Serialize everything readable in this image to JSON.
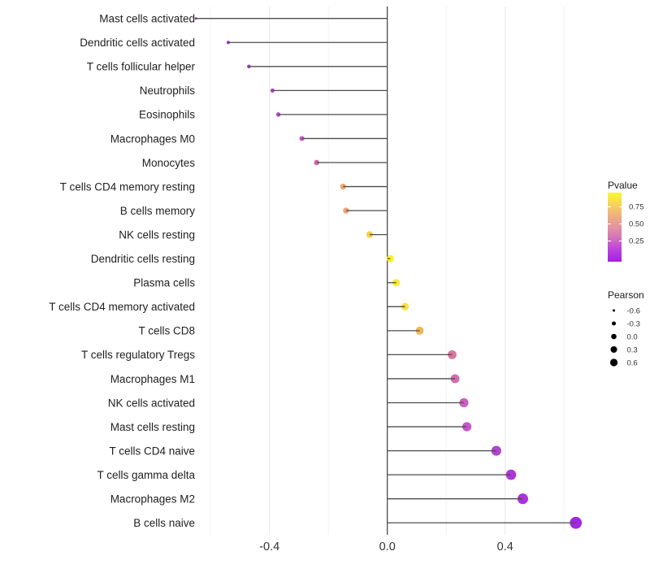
{
  "figure": {
    "background": "#ffffff",
    "title": ""
  },
  "chart_data": {
    "type": "lollipop",
    "orientation": "horizontal",
    "title": "",
    "xlabel": "",
    "ylabel": "",
    "x_axis": {
      "range": [
        -0.72,
        0.72
      ],
      "ticks": [
        -0.4,
        0.0,
        0.4
      ],
      "tick_labels": [
        "-0.4",
        "0.0",
        "0.4"
      ],
      "major_gridlines": [
        -0.4,
        0.0,
        0.4
      ],
      "minor_gridlines": [
        -0.6,
        -0.2,
        0.2,
        0.6
      ],
      "zero_line": 0.0
    },
    "grid": "vertical-only",
    "legend_position": "right",
    "points": [
      {
        "label": "Mast cells activated",
        "pearson": -0.65,
        "pvalue": 0.01,
        "color": "#8B22C3"
      },
      {
        "label": "Dendritic cells activated",
        "pearson": -0.54,
        "pvalue": 0.06,
        "color": "#9B2DD0"
      },
      {
        "label": "T cells follicular helper",
        "pearson": -0.47,
        "pvalue": 0.1,
        "color": "#A037CD"
      },
      {
        "label": "Neutrophils",
        "pearson": -0.39,
        "pvalue": 0.16,
        "color": "#B24CC6"
      },
      {
        "label": "Eosinophils",
        "pearson": -0.37,
        "pvalue": 0.17,
        "color": "#B44BC4"
      },
      {
        "label": "Macrophages M0",
        "pearson": -0.29,
        "pvalue": 0.27,
        "color": "#C45EC0"
      },
      {
        "label": "Monocytes",
        "pearson": -0.24,
        "pvalue": 0.35,
        "color": "#CC6BA8"
      },
      {
        "label": "T cells CD4 memory resting",
        "pearson": -0.15,
        "pvalue": 0.6,
        "color": "#EDA871"
      },
      {
        "label": "B cells memory",
        "pearson": -0.14,
        "pvalue": 0.61,
        "color": "#EDA674"
      },
      {
        "label": "NK cells resting",
        "pearson": -0.06,
        "pvalue": 0.82,
        "color": "#F5CE4B"
      },
      {
        "label": "Dendritic cells resting",
        "pearson": 0.01,
        "pvalue": 0.97,
        "color": "#FBF226"
      },
      {
        "label": "Plasma cells",
        "pearson": 0.03,
        "pvalue": 0.92,
        "color": "#F9E836"
      },
      {
        "label": "T cells CD4 memory activated",
        "pearson": 0.06,
        "pvalue": 0.86,
        "color": "#FADF4D"
      },
      {
        "label": "T cells CD8",
        "pearson": 0.11,
        "pvalue": 0.68,
        "color": "#EFB75A"
      },
      {
        "label": "T cells regulatory  Tregs",
        "pearson": 0.22,
        "pvalue": 0.47,
        "color": "#D9769F"
      },
      {
        "label": "Macrophages M1",
        "pearson": 0.23,
        "pvalue": 0.44,
        "color": "#D06FAD"
      },
      {
        "label": "NK cells activated",
        "pearson": 0.26,
        "pvalue": 0.36,
        "color": "#C95FC0"
      },
      {
        "label": "Mast cells resting",
        "pearson": 0.27,
        "pvalue": 0.33,
        "color": "#C557C8"
      },
      {
        "label": "T cells CD4 naive",
        "pearson": 0.37,
        "pvalue": 0.18,
        "color": "#AE46CB"
      },
      {
        "label": "T cells gamma delta",
        "pearson": 0.42,
        "pvalue": 0.13,
        "color": "#AC39D6"
      },
      {
        "label": "Macrophages M2",
        "pearson": 0.46,
        "pvalue": 0.1,
        "color": "#AB32DC"
      },
      {
        "label": "B cells naive",
        "pearson": 0.64,
        "pvalue": 0.03,
        "color": "#A226E3"
      }
    ]
  },
  "legend": {
    "pvalue": {
      "title": "Pvalue",
      "tick_labels": [
        "0.75",
        "0.50",
        "0.25"
      ],
      "gradient_top_to_bottom": [
        "#FBF921",
        "#F6D45B",
        "#EFAF80",
        "#E393A0",
        "#D26FBF",
        "#BB3FDF",
        "#A51FE0"
      ]
    },
    "pearson": {
      "title": "Pearson",
      "keys": [
        {
          "label": "-0.6",
          "r": 1.5
        },
        {
          "label": "-0.3",
          "r": 2.5
        },
        {
          "label": "0.0",
          "r": 3.3
        },
        {
          "label": "0.3",
          "r": 4.0
        },
        {
          "label": "0.6",
          "r": 4.6
        }
      ],
      "key_color": "#000000"
    }
  },
  "colors": {
    "segment": "#4d4d4d",
    "zero_line": "#2f2f2f",
    "major_grid": "#e7e7e7",
    "minor_grid": "#f2f2f2"
  }
}
